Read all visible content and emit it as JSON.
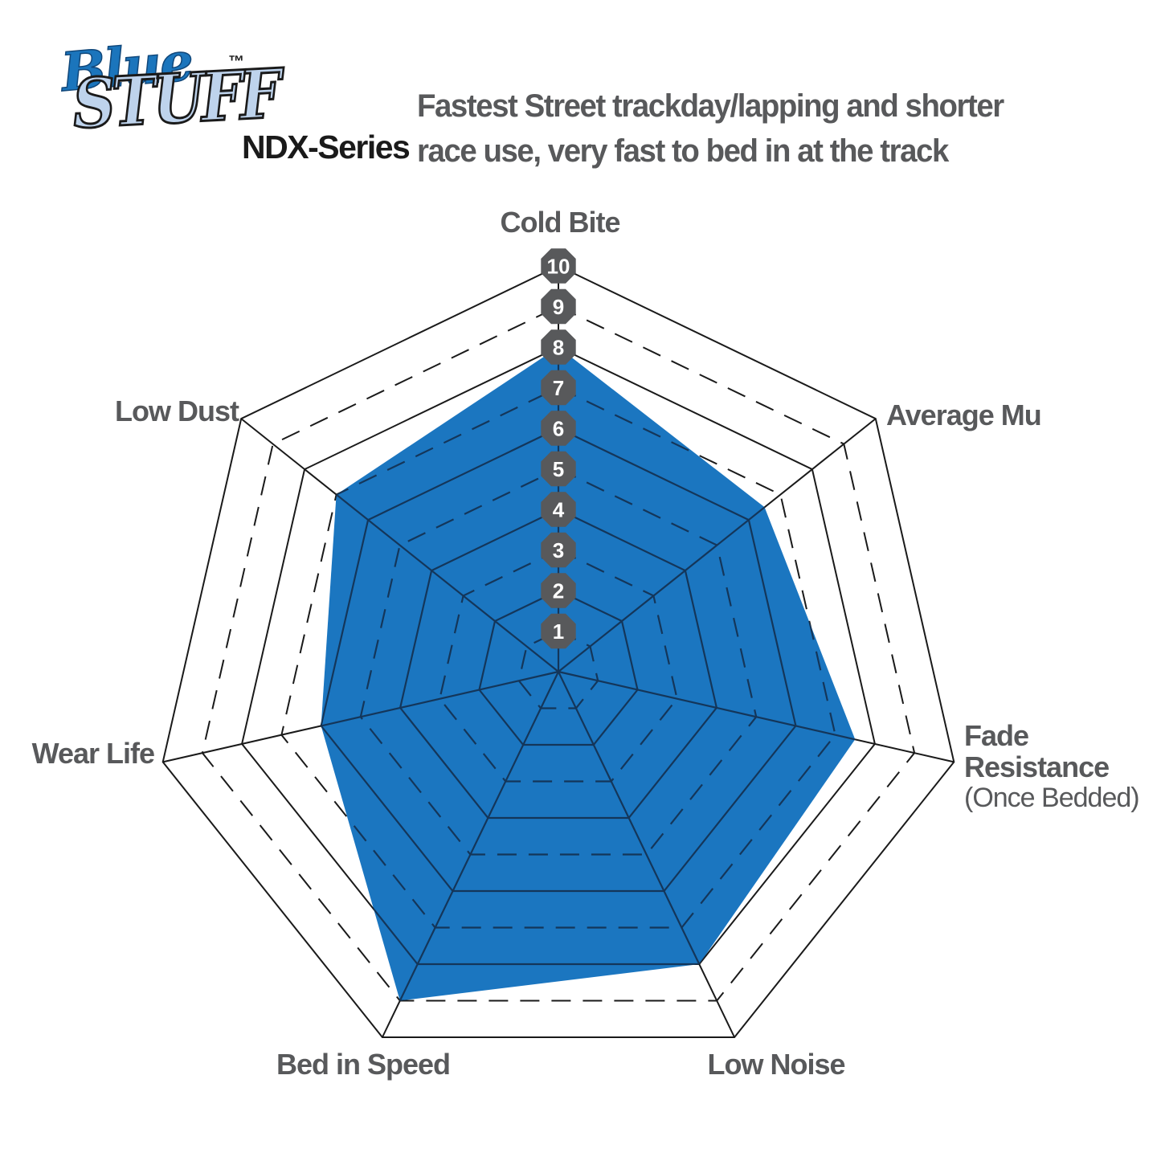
{
  "logo": {
    "brand_line1": "Blue",
    "brand_line2": "STUFF",
    "trademark": "™",
    "series": "NDX-Series"
  },
  "header": {
    "tagline_line1": "Fastest Street trackday/lapping and shorter",
    "tagline_line2": "race use, very fast to bed in at the track"
  },
  "chart_data": {
    "type": "radar",
    "scale": {
      "min": 1,
      "max": 10,
      "ticks": [
        1,
        2,
        3,
        4,
        5,
        6,
        7,
        8,
        9,
        10
      ]
    },
    "grid": {
      "rings_solid": "even levels",
      "rings_dashed": "odd levels",
      "spokes": "solid",
      "tick_marker_shape": "octagon badge on vertical axis"
    },
    "axes": [
      {
        "label": "Cold Bite",
        "value": 8
      },
      {
        "label": "Average Mu",
        "value": 6.5
      },
      {
        "label": "Fade Resistance",
        "label_lines": [
          "Fade",
          "Resistance"
        ],
        "sublabel": "(Once Bedded)",
        "value": 7.5
      },
      {
        "label": "Low Noise",
        "value": 8
      },
      {
        "label": "Bed in Speed",
        "value": 9
      },
      {
        "label": "Wear Life",
        "value": 6
      },
      {
        "label": "Low Dust",
        "value": 7
      }
    ],
    "legend_position": "none",
    "colors": {
      "fill": "#1b76c0",
      "grid_outer": "#1a1a1a",
      "grid_inner": "#14365a",
      "badge": "#58595b",
      "badge_text": "#ffffff",
      "label_text": "#58595b",
      "logo_blue": "#1b75bc",
      "logo_light_blue": "#bed3ec"
    }
  }
}
